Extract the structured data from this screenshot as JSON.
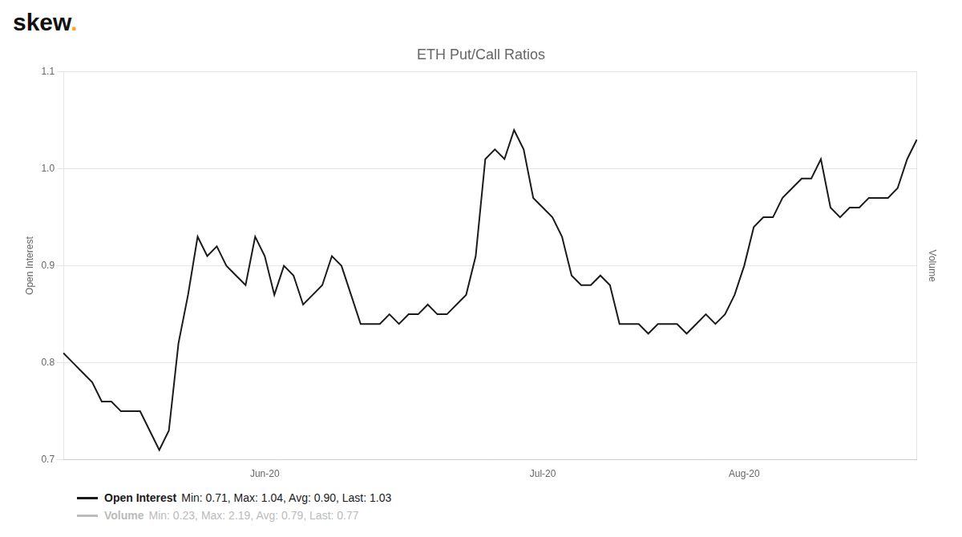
{
  "chart_data": {
    "type": "line",
    "title": "ETH Put/Call Ratios",
    "y_label": "Open Interest",
    "y2_label": "Volume",
    "categories": [
      null,
      null,
      null,
      null,
      null,
      null,
      null,
      null,
      null,
      null,
      null,
      null,
      null,
      null,
      null,
      null,
      null,
      null,
      null,
      null,
      null,
      "Jun-20",
      null,
      null,
      null,
      null,
      null,
      null,
      null,
      null,
      null,
      null,
      null,
      null,
      null,
      null,
      null,
      null,
      null,
      null,
      null,
      null,
      null,
      null,
      null,
      null,
      null,
      null,
      null,
      null,
      "Jul-20",
      null,
      null,
      null,
      null,
      null,
      null,
      null,
      null,
      null,
      null,
      null,
      null,
      null,
      null,
      null,
      null,
      null,
      null,
      null,
      null,
      "Aug-20",
      null,
      null,
      null,
      null,
      null,
      null,
      null,
      null,
      null,
      null,
      null,
      null,
      null,
      null,
      null,
      null,
      null,
      null
    ],
    "series": [
      {
        "name": "Open Interest",
        "color": "#1a1a1a",
        "values": [
          0.81,
          0.8,
          0.79,
          0.78,
          0.76,
          0.76,
          0.75,
          0.75,
          0.75,
          0.73,
          0.71,
          0.73,
          0.82,
          0.87,
          0.93,
          0.91,
          0.92,
          0.9,
          0.89,
          0.88,
          0.93,
          0.91,
          0.87,
          0.9,
          0.89,
          0.86,
          0.87,
          0.88,
          0.91,
          0.9,
          0.87,
          0.84,
          0.84,
          0.84,
          0.85,
          0.84,
          0.85,
          0.85,
          0.86,
          0.85,
          0.85,
          0.86,
          0.87,
          0.91,
          1.01,
          1.02,
          1.01,
          1.04,
          1.02,
          0.97,
          0.96,
          0.95,
          0.93,
          0.89,
          0.88,
          0.88,
          0.89,
          0.88,
          0.84,
          0.84,
          0.84,
          0.83,
          0.84,
          0.84,
          0.84,
          0.83,
          0.84,
          0.85,
          0.84,
          0.85,
          0.87,
          0.9,
          0.94,
          0.95,
          0.95,
          0.97,
          0.98,
          0.99,
          0.99,
          1.01,
          0.96,
          0.95,
          0.96,
          0.96,
          0.97,
          0.97,
          0.97,
          0.98,
          1.01,
          1.03
        ]
      }
    ],
    "ylim": [
      0.7,
      1.1
    ],
    "yticks": [
      0.7,
      0.8,
      0.9,
      {
        "value": 1.0,
        "label": "1.0"
      },
      1.1
    ],
    "y2lim": [
      0.7,
      1.1
    ],
    "y2ticks": [],
    "grid": true,
    "annotations": [
      {
        "text": "skew",
        "color": "#111111"
      },
      {
        "text": ".",
        "color": "#F5A623"
      },
      {
        "label": "Open Interest",
        "text": "Min: 0.71, Max: 1.04, Avg: 0.90, Last: 1.03",
        "color": "#1a1a1a"
      },
      {
        "label": "Volume",
        "text": "Min: 0.23, Max: 2.19, Avg: 0.79, Last: 0.77",
        "color": "#BBBBBB"
      }
    ]
  }
}
